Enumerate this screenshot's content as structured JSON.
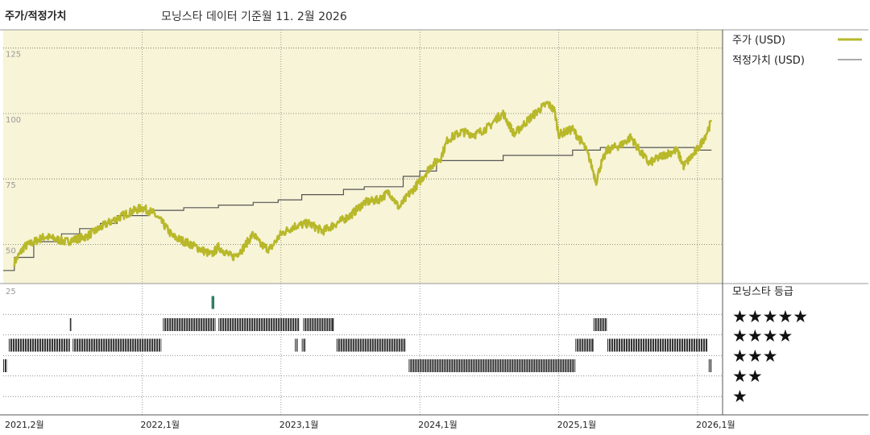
{
  "header": {
    "title": "주가/적정가치",
    "subtitle": "모닝스타 데이터 기준월 11. 2월 2026"
  },
  "legend": {
    "price_label": "주가 (USD)",
    "fair_label": "적정가치 (USD)",
    "rating_title": "모닝스타 등급"
  },
  "colors": {
    "plot_bg": "#f7f4d7",
    "price": "#b8b82a",
    "fair": "#555555",
    "bars": "#333333",
    "marker": "#2f7f62"
  },
  "chart_data": {
    "type": "line",
    "x_ticks": [
      "2021,2월",
      "2022,1월",
      "2023,1월",
      "2024,1월",
      "2025,1월",
      "2026,1월"
    ],
    "y_ticks": [
      50,
      75,
      100,
      125
    ],
    "ylim": [
      35,
      132
    ],
    "price_anchors": [
      [
        2021.08,
        43
      ],
      [
        2021.15,
        49
      ],
      [
        2021.3,
        53
      ],
      [
        2021.45,
        51
      ],
      [
        2021.6,
        53
      ],
      [
        2021.75,
        58
      ],
      [
        2021.9,
        62
      ],
      [
        2022.0,
        64
      ],
      [
        2022.08,
        62
      ],
      [
        2022.15,
        58
      ],
      [
        2022.22,
        53
      ],
      [
        2022.35,
        50
      ],
      [
        2022.5,
        46
      ],
      [
        2022.55,
        49
      ],
      [
        2022.65,
        45
      ],
      [
        2022.72,
        48
      ],
      [
        2022.8,
        54
      ],
      [
        2022.85,
        50
      ],
      [
        2022.92,
        48
      ],
      [
        2023.0,
        54
      ],
      [
        2023.1,
        57
      ],
      [
        2023.2,
        58
      ],
      [
        2023.3,
        55
      ],
      [
        2023.4,
        58
      ],
      [
        2023.5,
        61
      ],
      [
        2023.6,
        66
      ],
      [
        2023.7,
        67
      ],
      [
        2023.78,
        70
      ],
      [
        2023.85,
        64
      ],
      [
        2023.92,
        69
      ],
      [
        2024.0,
        74
      ],
      [
        2024.08,
        80
      ],
      [
        2024.15,
        83
      ],
      [
        2024.2,
        90
      ],
      [
        2024.3,
        93
      ],
      [
        2024.4,
        92
      ],
      [
        2024.5,
        95
      ],
      [
        2024.55,
        98
      ],
      [
        2024.6,
        100
      ],
      [
        2024.68,
        92
      ],
      [
        2024.75,
        96
      ],
      [
        2024.85,
        101
      ],
      [
        2024.92,
        104
      ],
      [
        2024.97,
        101
      ],
      [
        2025.0,
        92
      ],
      [
        2025.1,
        94
      ],
      [
        2025.18,
        88
      ],
      [
        2025.22,
        83
      ],
      [
        2025.27,
        74
      ],
      [
        2025.3,
        80
      ],
      [
        2025.35,
        86
      ],
      [
        2025.45,
        88
      ],
      [
        2025.52,
        91
      ],
      [
        2025.58,
        86
      ],
      [
        2025.65,
        81
      ],
      [
        2025.75,
        84
      ],
      [
        2025.85,
        86
      ],
      [
        2025.9,
        80
      ],
      [
        2025.98,
        85
      ],
      [
        2026.02,
        88
      ],
      [
        2026.06,
        92
      ],
      [
        2026.1,
        97
      ]
    ],
    "fair_steps": [
      [
        2021.0,
        40
      ],
      [
        2021.08,
        45
      ],
      [
        2021.22,
        51
      ],
      [
        2021.42,
        54
      ],
      [
        2021.55,
        56
      ],
      [
        2021.7,
        58
      ],
      [
        2021.82,
        61
      ],
      [
        2022.05,
        63
      ],
      [
        2022.3,
        64
      ],
      [
        2022.55,
        65
      ],
      [
        2022.8,
        66
      ],
      [
        2022.98,
        67
      ],
      [
        2023.15,
        69
      ],
      [
        2023.45,
        71
      ],
      [
        2023.6,
        72
      ],
      [
        2023.88,
        76
      ],
      [
        2024.0,
        78
      ],
      [
        2024.12,
        82
      ],
      [
        2024.6,
        84
      ],
      [
        2025.1,
        86
      ],
      [
        2025.3,
        87
      ],
      [
        2025.98,
        86
      ],
      [
        2026.1,
        86
      ]
    ],
    "rating_rows": {
      "5": [
        [
          2022.5,
          2022.52
        ]
      ],
      "4": [
        [
          2021.48,
          2021.49
        ],
        [
          2022.15,
          2022.53
        ],
        [
          2022.55,
          2023.13
        ],
        [
          2023.16,
          2023.38
        ],
        [
          2025.25,
          2025.35
        ]
      ],
      "3": [
        [
          2021.04,
          2021.48
        ],
        [
          2021.5,
          2022.14
        ],
        [
          2023.1,
          2023.12
        ],
        [
          2023.15,
          2023.18
        ],
        [
          2023.4,
          2023.9
        ],
        [
          2025.12,
          2025.25
        ],
        [
          2025.35,
          2026.07
        ]
      ],
      "2": [
        [
          2021.0,
          2021.03
        ],
        [
          2023.92,
          2025.12
        ],
        [
          2026.08,
          2026.1
        ]
      ],
      "1": []
    },
    "rating_stars": [
      "★★★★★",
      "★★★★",
      "★★★",
      "★★",
      "★"
    ]
  }
}
